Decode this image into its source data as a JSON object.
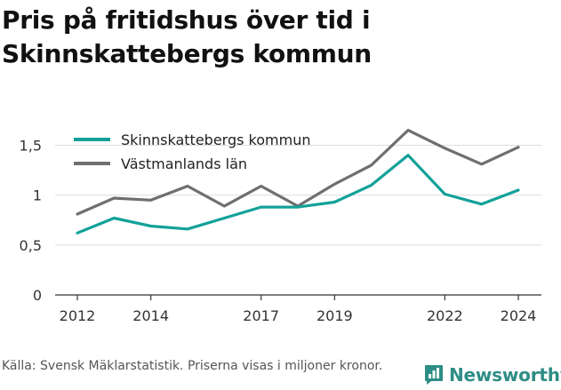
{
  "title": {
    "line1": "Pris på fritidshus över tid i",
    "line2": "Skinnskattebergs kommun"
  },
  "source": "Källa: Svensk Mäklarstatistik. Priserna visas i miljoner kronor.",
  "logo": {
    "text": "Newsworthy",
    "icon": "newsworthy-logo-icon",
    "color": "#2e8d85"
  },
  "chart_data": {
    "type": "line",
    "title": "Pris på fritidshus över tid i Skinnskattebergs kommun",
    "xlabel": "",
    "ylabel": "",
    "x": [
      2012,
      2013,
      2014,
      2015,
      2016,
      2017,
      2018,
      2019,
      2020,
      2021,
      2022,
      2023,
      2024
    ],
    "x_ticks": [
      2012,
      2014,
      2017,
      2019,
      2022,
      2024
    ],
    "x_tick_labels": [
      "2012",
      "2014",
      "2017",
      "2019",
      "2022",
      "2024"
    ],
    "xlim": [
      2012,
      2024
    ],
    "ylim": [
      0,
      1.7
    ],
    "y_ticks": [
      0,
      0.5,
      1,
      1.5
    ],
    "y_tick_labels": [
      "0",
      "0,5",
      "1",
      "1,5"
    ],
    "grid": "horizontal",
    "legend_position": "top-left",
    "series": [
      {
        "name": "Skinnskattebergs kommun",
        "color": "#12a19a",
        "values": [
          0.62,
          0.77,
          0.69,
          0.66,
          0.77,
          0.88,
          0.88,
          0.93,
          1.1,
          1.4,
          1.01,
          0.91,
          1.05
        ]
      },
      {
        "name": "Västmanlands län",
        "color": "#6f6f6f",
        "values": [
          0.81,
          0.97,
          0.95,
          1.09,
          0.89,
          1.09,
          0.89,
          1.11,
          1.3,
          1.65,
          1.47,
          1.31,
          1.48
        ]
      }
    ]
  }
}
